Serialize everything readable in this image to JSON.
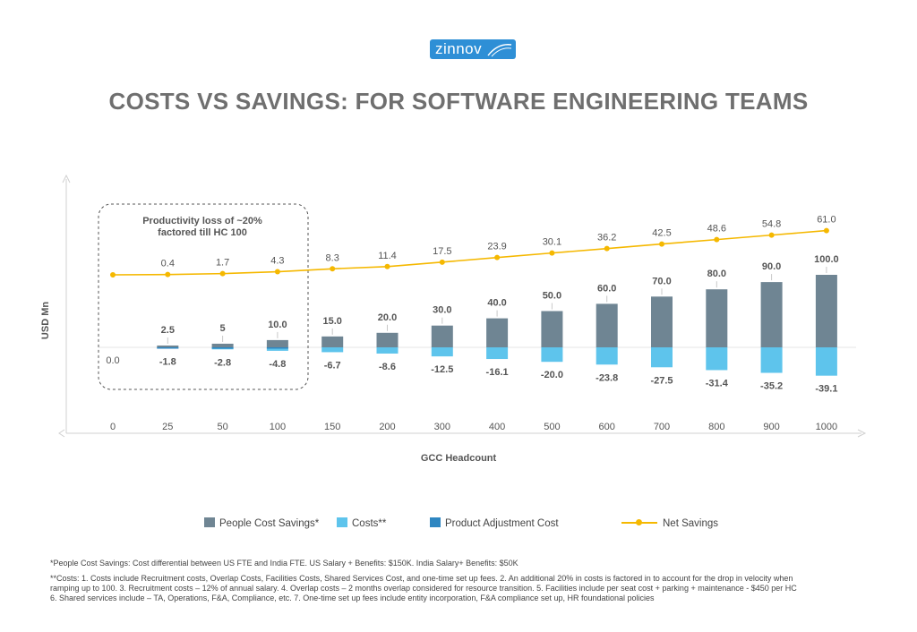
{
  "logo": {
    "text": "zinnov"
  },
  "title": "COSTS VS SAVINGS: FOR SOFTWARE ENGINEERING TEAMS",
  "colors": {
    "people_cost_savings": "#6f8593",
    "costs": "#5ec4ec",
    "product_adjustment_cost": "#2e86c1",
    "net_savings": "#f5b800",
    "title": "#6f6f6f"
  },
  "annotation": {
    "line1": "Productivity loss of ~20%",
    "line2": "factored till HC 100"
  },
  "legend": {
    "people_cost_savings": "People Cost Savings*",
    "costs": "Costs**",
    "product_adjustment_cost": "Product Adjustment Cost",
    "net_savings": "Net Savings"
  },
  "footnotes": {
    "note1": "*People Cost Savings:  Cost differential between US FTE and India FTE.  US Salary + Benefits: $150K.  India Salary+ Benefits: $50K",
    "note2_lines": [
      "**Costs:  1. Costs include Recruitment costs, Overlap Costs, Facilities Costs, Shared Services Cost, and one-time set up fees.  2. An additional 20% in costs is factored in to account for the drop in velocity when",
      "ramping up to 100.  3. Recruitment costs – 12% of annual salary.  4. Overlap costs – 2 months overlap considered for resource transition.  5. Facilities include per seat cost + parking + maintenance - $450 per HC",
      "6. Shared services include – TA, Operations, F&A, Compliance, etc.  7. One-time set up fees include entity incorporation, F&A compliance set up, HR foundational policies"
    ]
  },
  "chart_data": {
    "type": "bar",
    "xlabel": "GCC Headcount",
    "ylabel": "USD Mn",
    "categories": [
      "0",
      "25",
      "50",
      "100",
      "150",
      "200",
      "300",
      "400",
      "500",
      "600",
      "700",
      "800",
      "900",
      "1000"
    ],
    "series": [
      {
        "name": "People Cost Savings*",
        "type": "bar",
        "values": [
          null,
          2.5,
          5,
          10.0,
          15.0,
          20.0,
          30.0,
          40.0,
          50.0,
          60.0,
          70.0,
          80.0,
          90.0,
          100.0
        ],
        "labels": [
          "",
          "2.5",
          "5",
          "10.0",
          "15.0",
          "20.0",
          "30.0",
          "40.0",
          "50.0",
          "60.0",
          "70.0",
          "80.0",
          "90.0",
          "100.0"
        ]
      },
      {
        "name": "Costs**",
        "type": "bar",
        "values": [
          0.0,
          -1.8,
          -2.8,
          -4.8,
          -6.7,
          -8.6,
          -12.5,
          -16.1,
          -20.0,
          -23.8,
          -27.5,
          -31.4,
          -35.2,
          -39.1
        ],
        "labels": [
          "0.0",
          "-1.8",
          "-2.8",
          "-4.8",
          "-6.7",
          "-8.6",
          "-12.5",
          "-16.1",
          "-20.0",
          "-23.8",
          "-27.5",
          "-31.4",
          "-35.2",
          "-39.1"
        ]
      },
      {
        "name": "Product Adjustment Cost",
        "type": "bar",
        "values": [
          null,
          -0.4,
          -0.5,
          -0.9,
          null,
          null,
          null,
          null,
          null,
          null,
          null,
          null,
          null,
          null
        ]
      },
      {
        "name": "Net Savings",
        "type": "line",
        "values": [
          null,
          0.4,
          1.7,
          4.3,
          8.3,
          11.4,
          17.5,
          23.9,
          30.1,
          36.2,
          42.5,
          48.6,
          54.8,
          61.0
        ],
        "labels": [
          "",
          "0.4",
          "1.7",
          "4.3",
          "8.3",
          "11.4",
          "17.5",
          "23.9",
          "30.1",
          "36.2",
          "42.5",
          "48.6",
          "54.8",
          "61.0"
        ]
      }
    ],
    "legend_position": "bottom",
    "grid": false
  }
}
